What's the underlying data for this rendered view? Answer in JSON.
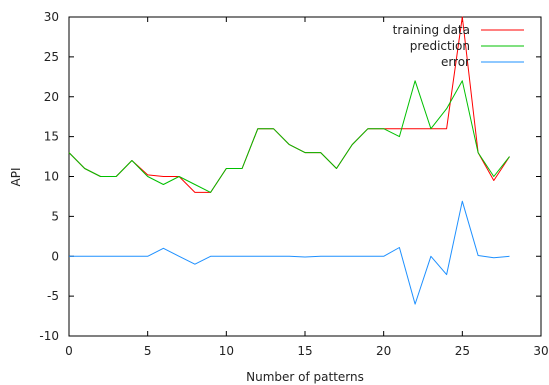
{
  "chart_data": {
    "type": "line",
    "title": "",
    "xlabel": "Number of patterns",
    "ylabel": "API",
    "xlim": [
      0,
      30
    ],
    "ylim": [
      -10,
      30
    ],
    "xticks": [
      0,
      5,
      10,
      15,
      20,
      25,
      30
    ],
    "yticks": [
      -10,
      -5,
      0,
      5,
      10,
      15,
      20,
      25,
      30
    ],
    "xtick_labels": [
      "0",
      "5",
      "10",
      "15",
      "20",
      "25",
      "30"
    ],
    "ytick_labels": [
      "-10",
      "-5",
      "0",
      "5",
      "10",
      "15",
      "20",
      "25",
      "30"
    ],
    "grid": false,
    "legend_position": "top-right",
    "x": [
      0,
      1,
      2,
      3,
      4,
      5,
      6,
      7,
      8,
      9,
      10,
      11,
      12,
      13,
      14,
      15,
      16,
      17,
      18,
      19,
      20,
      21,
      22,
      23,
      24,
      25,
      26,
      27,
      28
    ],
    "series": [
      {
        "name": "training data",
        "color": "#ff0000",
        "values": [
          13,
          11,
          10,
          10,
          12,
          10.2,
          10,
          10,
          8,
          8,
          11,
          11,
          16,
          16,
          14,
          13,
          13,
          11,
          14,
          16,
          16,
          16,
          16,
          16,
          16,
          30,
          13,
          9.5,
          12.5
        ]
      },
      {
        "name": "prediction",
        "color": "#00c000",
        "values": [
          13,
          11,
          10,
          10,
          12,
          10,
          9,
          10,
          9,
          8,
          11,
          11,
          16,
          16,
          14,
          13,
          13,
          11,
          14,
          16,
          16,
          15,
          22,
          16,
          18.5,
          22,
          13,
          10,
          12.5
        ]
      },
      {
        "name": "error",
        "color": "#1e90ff",
        "values": [
          0,
          0,
          0,
          0,
          0,
          0,
          1,
          0,
          -1,
          0,
          0,
          0,
          0,
          0,
          0,
          -0.1,
          0,
          0,
          0,
          0,
          0,
          1.1,
          -6,
          0,
          -2.3,
          6.9,
          0.1,
          -0.2,
          0
        ]
      }
    ]
  }
}
